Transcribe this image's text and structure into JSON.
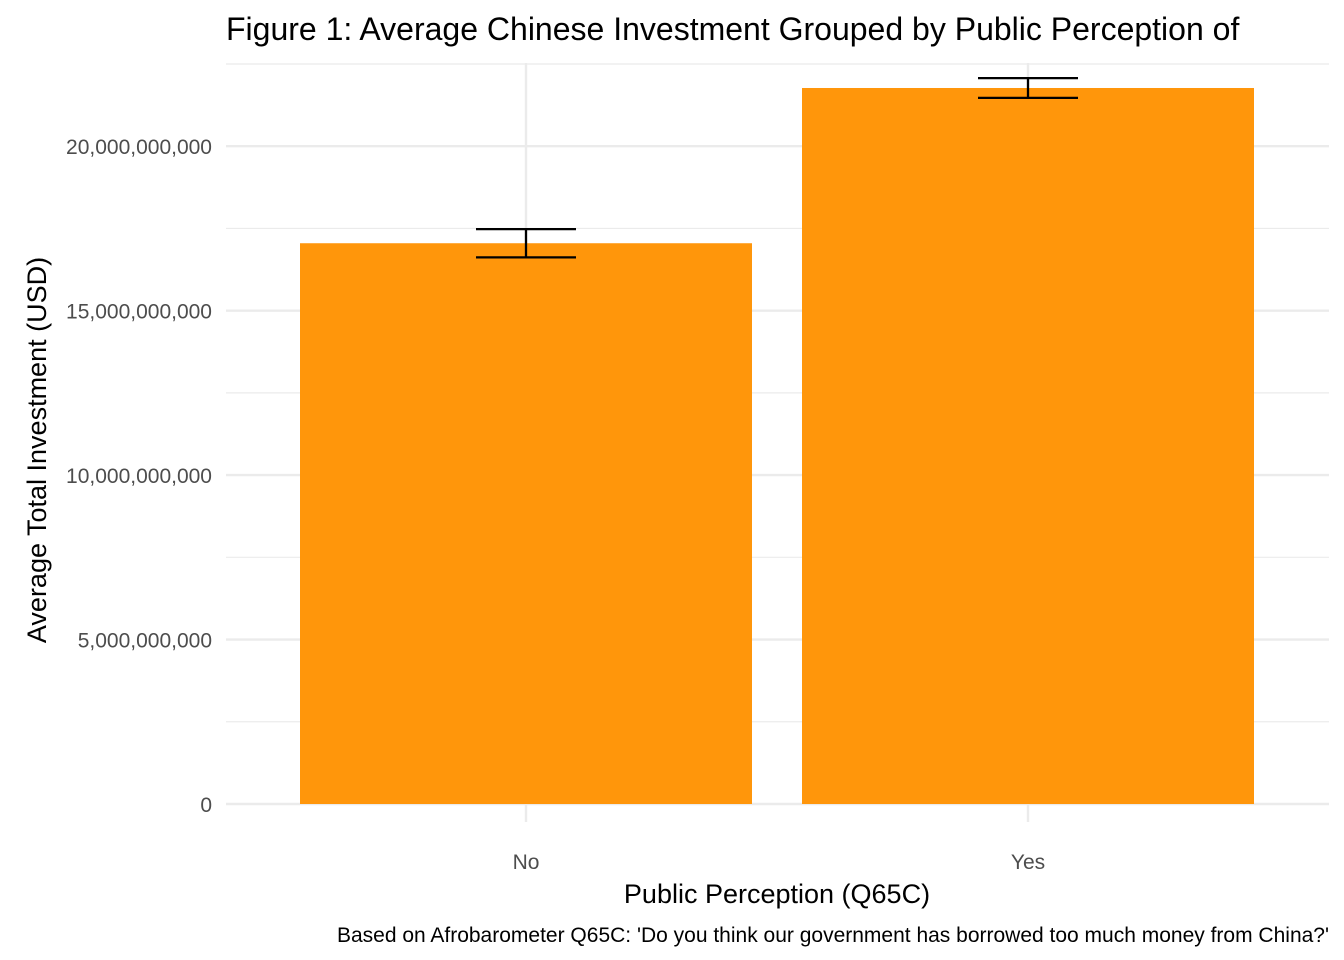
{
  "chart_data": {
    "type": "bar",
    "title": "Figure 1: Average Chinese Investment Grouped by Public Perception of",
    "xlabel": "Public Perception (Q65C)",
    "ylabel": "Average Total Investment (USD)",
    "caption": "Based on Afrobarometer Q65C: 'Do you think our government has borrowed too much money from China?'",
    "categories": [
      "No",
      "Yes"
    ],
    "values": [
      17050000000,
      21770000000
    ],
    "error_bars": [
      {
        "low": 16620000000,
        "high": 17480000000
      },
      {
        "low": 21470000000,
        "high": 22070000000
      }
    ],
    "ylim": [
      0,
      22530000000
    ],
    "yticks": [
      0,
      5000000000,
      10000000000,
      15000000000,
      20000000000
    ],
    "ytick_labels": [
      "0",
      "5,000,000,000",
      "10,000,000,000",
      "15,000,000,000",
      "20,000,000,000"
    ],
    "grid": true,
    "legend": "none",
    "colors": {
      "bar": "#ff960b",
      "error_bar": "#000000",
      "grid": "#ebebeb",
      "tick_text": "#4d4d4d"
    }
  }
}
